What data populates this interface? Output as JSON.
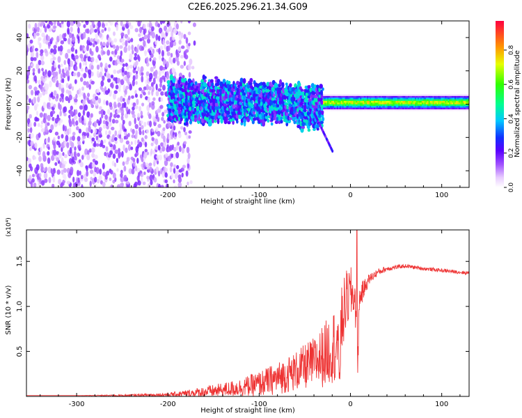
{
  "title": "C2E6.2025.296.21.34.G09",
  "chart_data": [
    {
      "type": "heatmap",
      "name": "spectrogram",
      "xlabel": "Height of straight line (km)",
      "ylabel": "Frequency (Hz)",
      "xlim": [
        -355,
        130
      ],
      "ylim": [
        -50,
        50
      ],
      "x_ticks": [
        -300,
        -200,
        -100,
        0,
        100
      ],
      "x_tick_labels": [
        "-300",
        "-200",
        "-100",
        "0",
        "100"
      ],
      "y_ticks": [
        -40,
        -20,
        0,
        20,
        40
      ],
      "y_tick_labels": [
        "-40",
        "-20",
        "0",
        "20",
        "40"
      ],
      "colorbar": {
        "label": "Normalized spectral amplitude",
        "range": [
          0.0,
          0.97
        ],
        "ticks": [
          0.0,
          0.2,
          0.4,
          0.6,
          0.8
        ],
        "tick_labels": [
          "0.0",
          "0.2",
          "0.4",
          "0.6",
          "0.8"
        ]
      },
      "regions": [
        {
          "x_range": [
            -355,
            -200
          ],
          "freq_range": [
            -50,
            50
          ],
          "amplitude": 0.1,
          "description": "broadband noise"
        },
        {
          "x_range": [
            -200,
            -30
          ],
          "freq_range": [
            -12,
            18
          ],
          "amplitude": 0.25,
          "description": "turbulent band"
        },
        {
          "x_range": [
            -30,
            130
          ],
          "freq_range": [
            -2,
            3
          ],
          "amplitude": 0.8,
          "description": "steady carrier"
        }
      ]
    },
    {
      "type": "line",
      "name": "snr",
      "xlabel": "Height of straight line (km)",
      "ylabel": "SNR (10 * v/v)",
      "y_multiplier": "(x10⁴)",
      "xlim": [
        -355,
        130
      ],
      "ylim": [
        0,
        1.85
      ],
      "x_ticks": [
        -300,
        -200,
        -100,
        0,
        100
      ],
      "x_tick_labels": [
        "-300",
        "-200",
        "-100",
        "0",
        "100"
      ],
      "y_ticks": [
        0.5,
        1.0,
        1.5
      ],
      "y_tick_labels": [
        "0.5",
        "1.0",
        "1.5"
      ],
      "color": "#ee3333",
      "series": [
        {
          "name": "SNR",
          "x": [
            -355,
            -300,
            -250,
            -200,
            -180,
            -160,
            -140,
            -120,
            -100,
            -80,
            -60,
            -40,
            -30,
            -20,
            -15,
            -12,
            -10,
            -5,
            0,
            5,
            8,
            10,
            15,
            20,
            30,
            40,
            60,
            80,
            100,
            130
          ],
          "y": [
            0.01,
            0.01,
            0.01,
            0.02,
            0.03,
            0.05,
            0.07,
            0.1,
            0.14,
            0.2,
            0.28,
            0.38,
            0.45,
            0.55,
            0.6,
            0.3,
            0.8,
            1.05,
            1.15,
            1.1,
            0.4,
            1.1,
            1.2,
            1.3,
            1.38,
            1.42,
            1.45,
            1.42,
            1.4,
            1.37
          ],
          "spread": [
            0.0,
            0.0,
            0.01,
            0.02,
            0.04,
            0.06,
            0.08,
            0.1,
            0.14,
            0.18,
            0.22,
            0.28,
            0.35,
            0.4,
            0.45,
            0.3,
            0.4,
            0.35,
            0.3,
            0.25,
            0.2,
            0.15,
            0.1,
            0.06,
            0.04,
            0.03,
            0.02,
            0.02,
            0.02,
            0.02
          ],
          "peak": {
            "x": 7,
            "y": 1.85
          }
        }
      ]
    }
  ]
}
